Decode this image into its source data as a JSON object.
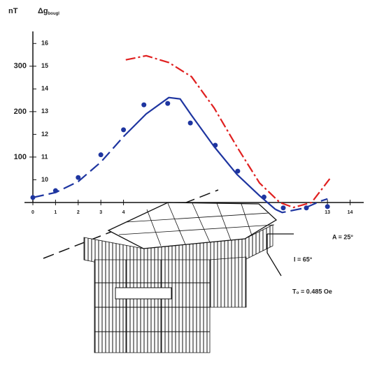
{
  "chart_data": {
    "type": "line",
    "y_label": "nT",
    "y2_label": "Δg",
    "y2_label_subscript": "bougl",
    "xlim": [
      -0.37,
      14.6
    ],
    "xticks": [
      0,
      1,
      2,
      3,
      4,
      13,
      14
    ],
    "ylim": [
      -50,
      415
    ],
    "yticks": [
      100,
      200,
      300
    ],
    "y2lim": [
      8,
      17.3
    ],
    "y2ticks": [
      10,
      11,
      12,
      13,
      14,
      15,
      16
    ],
    "series": [
      {
        "style": "markers",
        "color": "#1e35a0",
        "x": [
          0,
          1,
          2,
          3,
          4,
          4.9,
          5.95,
          6.95,
          8.05,
          9.04,
          10.2,
          11.05,
          12.07,
          13
        ],
        "values": [
          11,
          26,
          55,
          105,
          160,
          215,
          218,
          175,
          126,
          69,
          12,
          -12,
          -12,
          -9
        ]
      },
      {
        "style": "dashed",
        "color": "#1e35a0",
        "x": [
          0,
          1,
          2,
          3,
          4
        ],
        "values": [
          11,
          22,
          46,
          89,
          145
        ]
      },
      {
        "style": "solid",
        "color": "#1e35a0",
        "x": [
          4,
          5,
          6,
          6.5,
          7,
          8,
          9,
          10,
          10.7
        ],
        "values": [
          145,
          195,
          231,
          228,
          192,
          123,
          62,
          15,
          -15
        ]
      },
      {
        "style": "dashed",
        "color": "#1e35a0",
        "x": [
          10.7,
          11,
          12,
          12.7,
          13
        ],
        "values": [
          -15,
          -22,
          -12,
          3,
          8
        ]
      },
      {
        "style": "dashdot",
        "color": "#e02020",
        "x": [
          4.1,
          5,
          6,
          7,
          8,
          9,
          10,
          10.9,
          11.5,
          12.3,
          13.1
        ],
        "values": [
          314,
          323,
          308,
          277,
          208,
          123,
          43,
          0,
          -11,
          0,
          52
        ]
      }
    ]
  },
  "diagram": {
    "azimuth": "A = 25°",
    "inclination": "I = 65°",
    "field": "T₀ = 0.485 Oe"
  }
}
